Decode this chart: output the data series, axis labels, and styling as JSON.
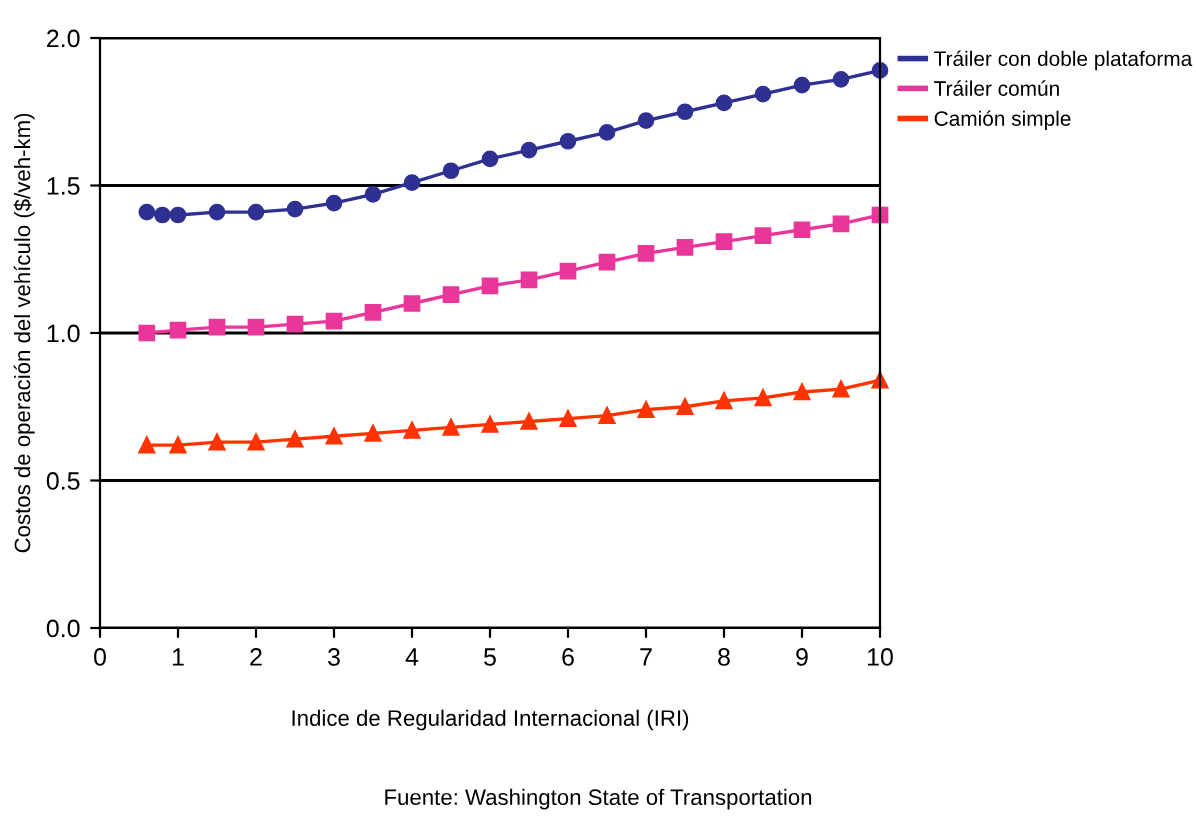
{
  "chart_data": {
    "type": "line",
    "xlabel": "Indice de Regularidad Internacional (IRI)",
    "ylabel": "Costos de operación del vehículo ($/veh-km)",
    "xlim": [
      0,
      10
    ],
    "ylim": [
      0,
      2.0
    ],
    "xticks": [
      0,
      1,
      2,
      3,
      4,
      5,
      6,
      7,
      8,
      9,
      10
    ],
    "yticks": [
      {
        "value": 0,
        "label": "0.0"
      },
      {
        "value": 0.5,
        "label": "0.5"
      },
      {
        "value": 1,
        "label": "1.0"
      },
      {
        "value": 1.5,
        "label": "1.5"
      },
      {
        "value": 2,
        "label": "2.0"
      }
    ],
    "grid": "y",
    "legend": "right",
    "annotations": [
      "Fuente: Washington State of Transportation"
    ],
    "series": [
      {
        "name": "Tráiler con doble plataforma",
        "color": "#2e3192",
        "marker": "circle",
        "x": [
          0.6,
          0.8,
          1,
          1.5,
          2,
          2.5,
          3,
          3.5,
          4,
          4.5,
          5,
          5.5,
          6,
          6.5,
          7,
          7.5,
          8,
          8.5,
          9,
          9.5,
          10
        ],
        "values": [
          1.41,
          1.4,
          1.4,
          1.41,
          1.41,
          1.42,
          1.44,
          1.47,
          1.51,
          1.55,
          1.59,
          1.62,
          1.65,
          1.68,
          1.72,
          1.75,
          1.78,
          1.81,
          1.84,
          1.86,
          1.89
        ]
      },
      {
        "name": "Tráiler común",
        "color": "#e8369a",
        "marker": "square",
        "x": [
          0.6,
          1,
          1.5,
          2,
          2.5,
          3,
          3.5,
          4,
          4.5,
          5,
          5.5,
          6,
          6.5,
          7,
          7.5,
          8,
          8.5,
          9,
          9.5,
          10
        ],
        "values": [
          1.0,
          1.01,
          1.02,
          1.02,
          1.03,
          1.04,
          1.07,
          1.1,
          1.13,
          1.16,
          1.18,
          1.21,
          1.24,
          1.27,
          1.29,
          1.31,
          1.33,
          1.35,
          1.37,
          1.4
        ]
      },
      {
        "name": "Camión simple",
        "color": "#ff3300",
        "marker": "triangle",
        "x": [
          0.6,
          1,
          1.5,
          2,
          2.5,
          3,
          3.5,
          4,
          4.5,
          5,
          5.5,
          6,
          6.5,
          7,
          7.5,
          8,
          8.5,
          9,
          9.5,
          10
        ],
        "values": [
          0.62,
          0.62,
          0.63,
          0.63,
          0.64,
          0.65,
          0.66,
          0.67,
          0.68,
          0.69,
          0.7,
          0.71,
          0.72,
          0.74,
          0.75,
          0.77,
          0.78,
          0.8,
          0.81,
          0.84
        ]
      }
    ]
  }
}
